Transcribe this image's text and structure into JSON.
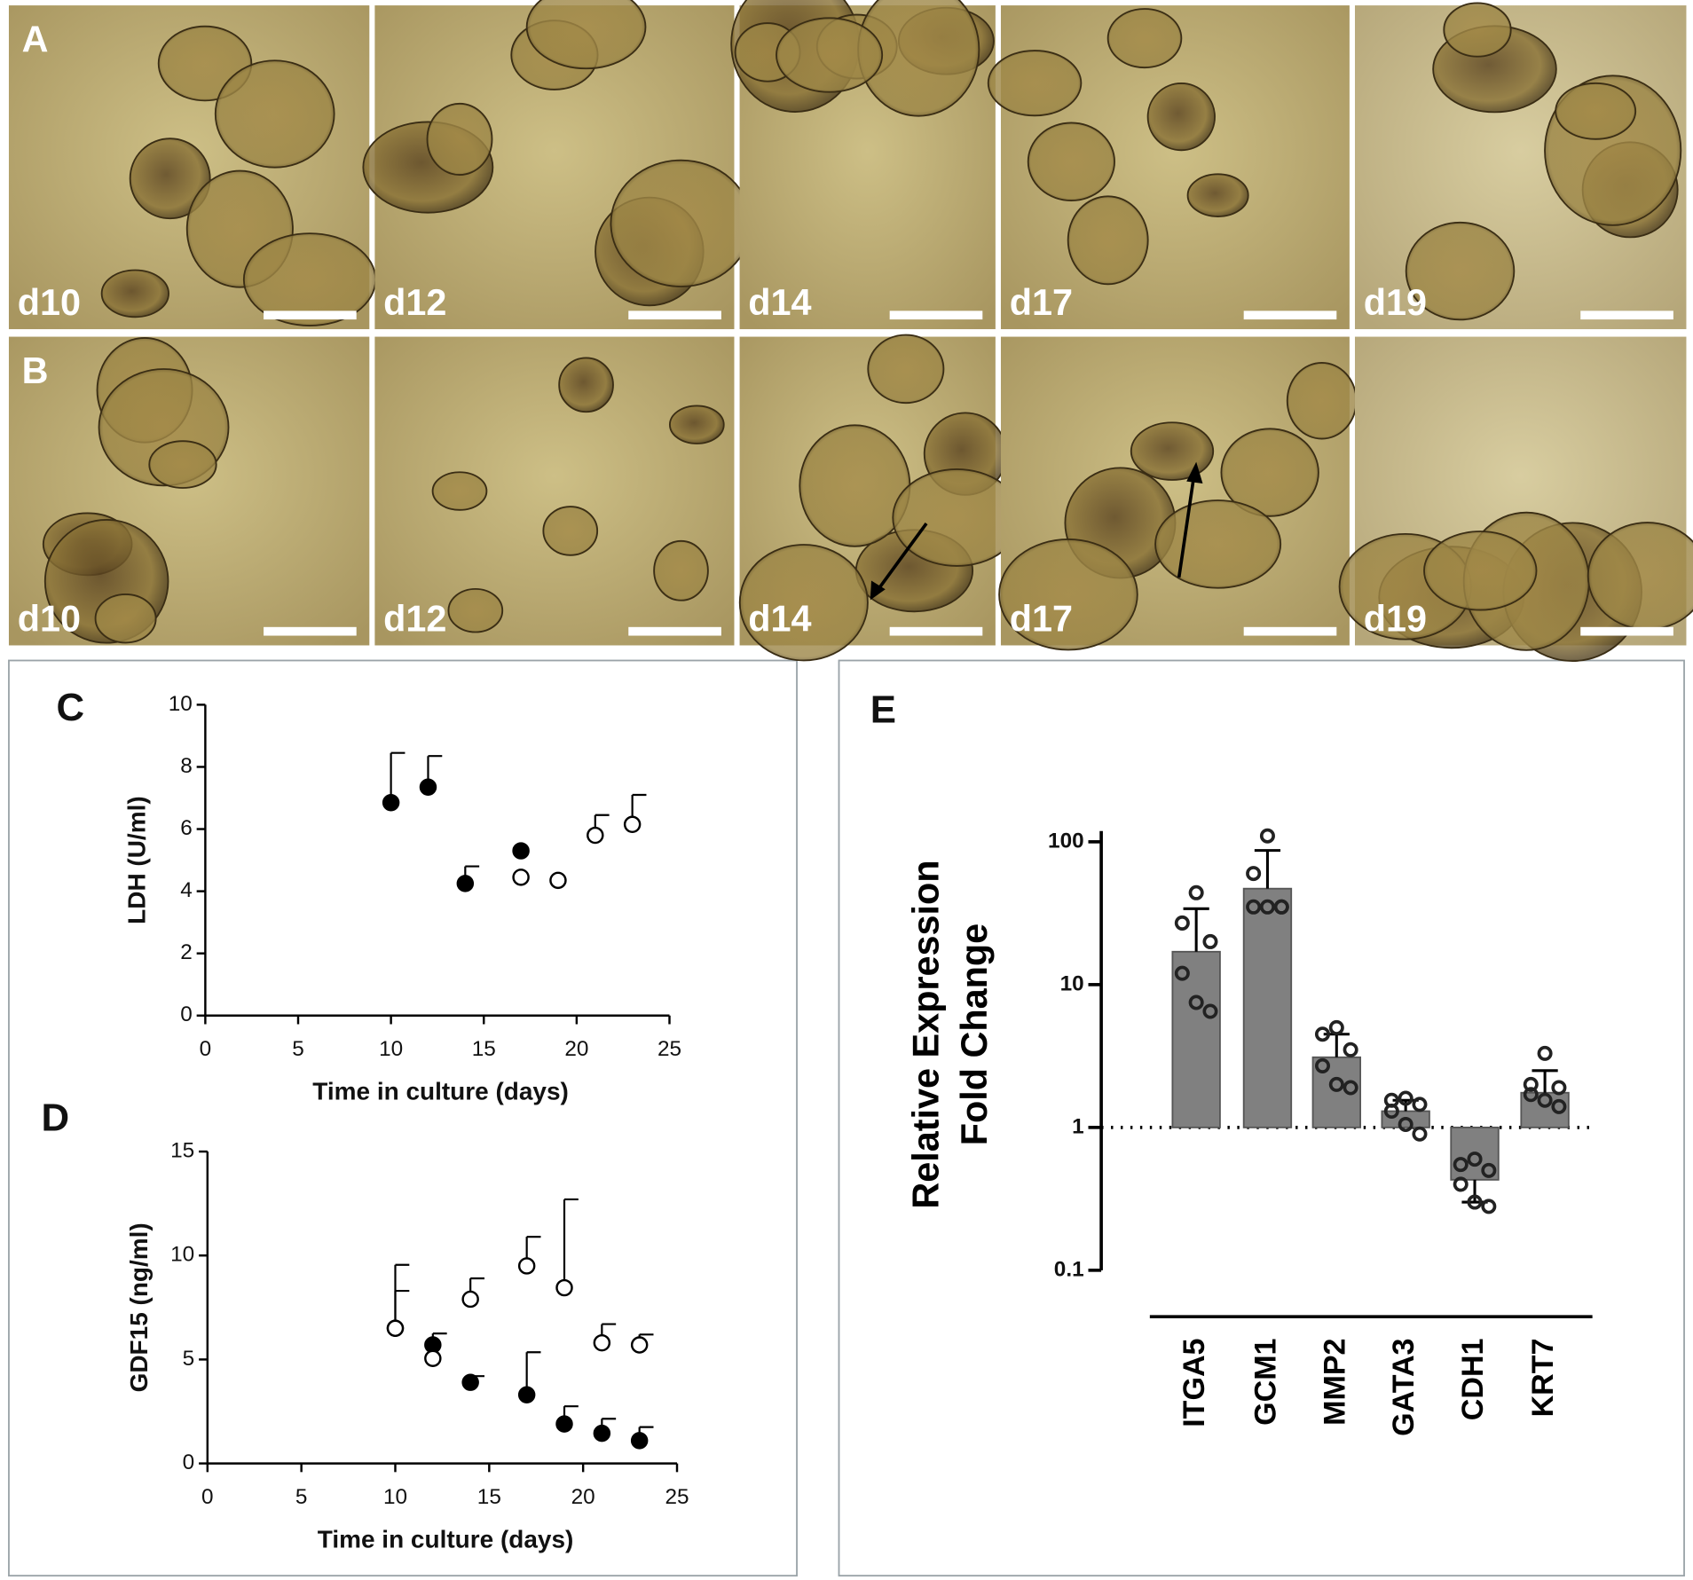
{
  "micrographs": {
    "rows": [
      {
        "label": "A",
        "days": [
          "d10",
          "d12",
          "d14",
          "d17",
          "d19"
        ]
      },
      {
        "label": "B",
        "days": [
          "d10",
          "d12",
          "d14",
          "d17",
          "d19"
        ]
      }
    ]
  },
  "chart_data": [
    {
      "type": "scatter",
      "panel": "C",
      "ylabel": "LDH (U/ml)",
      "xlabel": "Time in culture (days)",
      "xlim": [
        0,
        25
      ],
      "xticks": [
        0,
        5,
        10,
        15,
        20,
        25
      ],
      "ylim": [
        0,
        10
      ],
      "yticks": [
        0,
        2,
        4,
        6,
        8,
        10
      ],
      "series": [
        {
          "marker": "filled",
          "color": "#000000",
          "x": [
            10,
            12,
            14,
            17
          ],
          "y": [
            6.85,
            7.35,
            4.25,
            5.3
          ],
          "errors": [
            1.6,
            1.0,
            0.55,
            null
          ]
        },
        {
          "marker": "open",
          "color": "#000000",
          "x": [
            17,
            19,
            21,
            23
          ],
          "y": [
            4.45,
            4.35,
            5.8,
            6.15
          ],
          "errors": [
            null,
            null,
            0.65,
            0.95
          ]
        }
      ]
    },
    {
      "type": "scatter",
      "panel": "D",
      "ylabel": "GDF15 (ng/ml)",
      "xlabel": "Time in culture (days)",
      "xlim": [
        0,
        25
      ],
      "xticks": [
        0,
        5,
        10,
        15,
        20,
        25
      ],
      "ylim": [
        0,
        15
      ],
      "yticks": [
        0,
        5,
        10,
        15
      ],
      "series": [
        {
          "marker": "filled",
          "color": "#000000",
          "x": [
            10,
            12,
            14,
            17,
            19,
            21,
            23
          ],
          "y": [
            6.5,
            5.7,
            3.9,
            3.3,
            1.9,
            1.45,
            1.1
          ],
          "errors": [
            3.05,
            0.55,
            0.3,
            2.05,
            0.85,
            0.7,
            0.65
          ]
        },
        {
          "marker": "open",
          "color": "#000000",
          "x": [
            10,
            12,
            14,
            17,
            19,
            21,
            23
          ],
          "y": [
            6.5,
            5.05,
            7.9,
            9.5,
            8.45,
            5.8,
            5.7
          ],
          "errors": [
            1.8,
            null,
            1.0,
            1.4,
            4.25,
            0.9,
            0.5
          ]
        }
      ]
    },
    {
      "type": "bar",
      "panel": "E",
      "ylabel": [
        "Relative Expression",
        "Fold Change"
      ],
      "log": true,
      "ylim": [
        0.1,
        100
      ],
      "yticks": [
        0.1,
        1,
        10,
        100
      ],
      "reference_line": 1,
      "categories": [
        "ITGA5",
        "GCM1",
        "MMP2",
        "GATA3",
        "CDH1",
        "KRT7"
      ],
      "color": "#808080",
      "values": [
        17,
        47,
        3.1,
        1.3,
        0.43,
        1.75
      ],
      "errors": [
        17,
        40,
        1.4,
        0.25,
        0.13,
        0.75
      ],
      "points": [
        [
          44,
          27,
          20,
          12,
          7.5,
          6.5
        ],
        [
          110,
          60,
          35,
          35,
          35,
          35
        ],
        [
          5,
          4.5,
          3.5,
          2.7,
          2.0,
          1.9
        ],
        [
          1.6,
          1.55,
          1.45,
          1.3,
          1.05,
          0.9
        ],
        [
          0.6,
          0.55,
          0.5,
          0.4,
          0.3,
          0.28
        ],
        [
          3.3,
          2.0,
          1.9,
          1.7,
          1.55,
          1.4
        ]
      ]
    }
  ]
}
